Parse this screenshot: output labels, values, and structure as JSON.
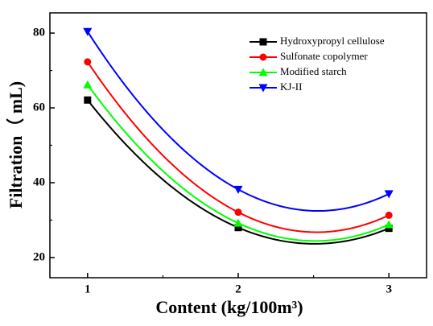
{
  "chart_data": {
    "type": "line",
    "xlabel": "Content (kg/100m³)",
    "ylabel": "Filtration（ mL)",
    "x": [
      1,
      2,
      3
    ],
    "series": [
      {
        "name": "Hydroxypropyl cellulose",
        "color": "#000000",
        "marker": "square",
        "values": [
          62.1,
          28,
          27.8
        ]
      },
      {
        "name": "Sulfonate copolymer",
        "color": "#ff0000",
        "marker": "circle",
        "values": [
          72.3,
          32.1,
          31.3
        ]
      },
      {
        "name": "Modified starch",
        "color": "#00ff00",
        "marker": "triangle-up",
        "values": [
          66.2,
          29.2,
          28.8
        ]
      },
      {
        "name": "KJ-II",
        "color": "#0000ff",
        "marker": "triangle-down",
        "values": [
          80.4,
          38.2,
          37
        ]
      }
    ],
    "xlim": [
      0.75,
      3.25
    ],
    "xticks": [
      1,
      2,
      3
    ],
    "ylim": [
      14.6,
      85.4
    ],
    "yticks": [
      20,
      40,
      60,
      80
    ],
    "legend": "top-right"
  }
}
